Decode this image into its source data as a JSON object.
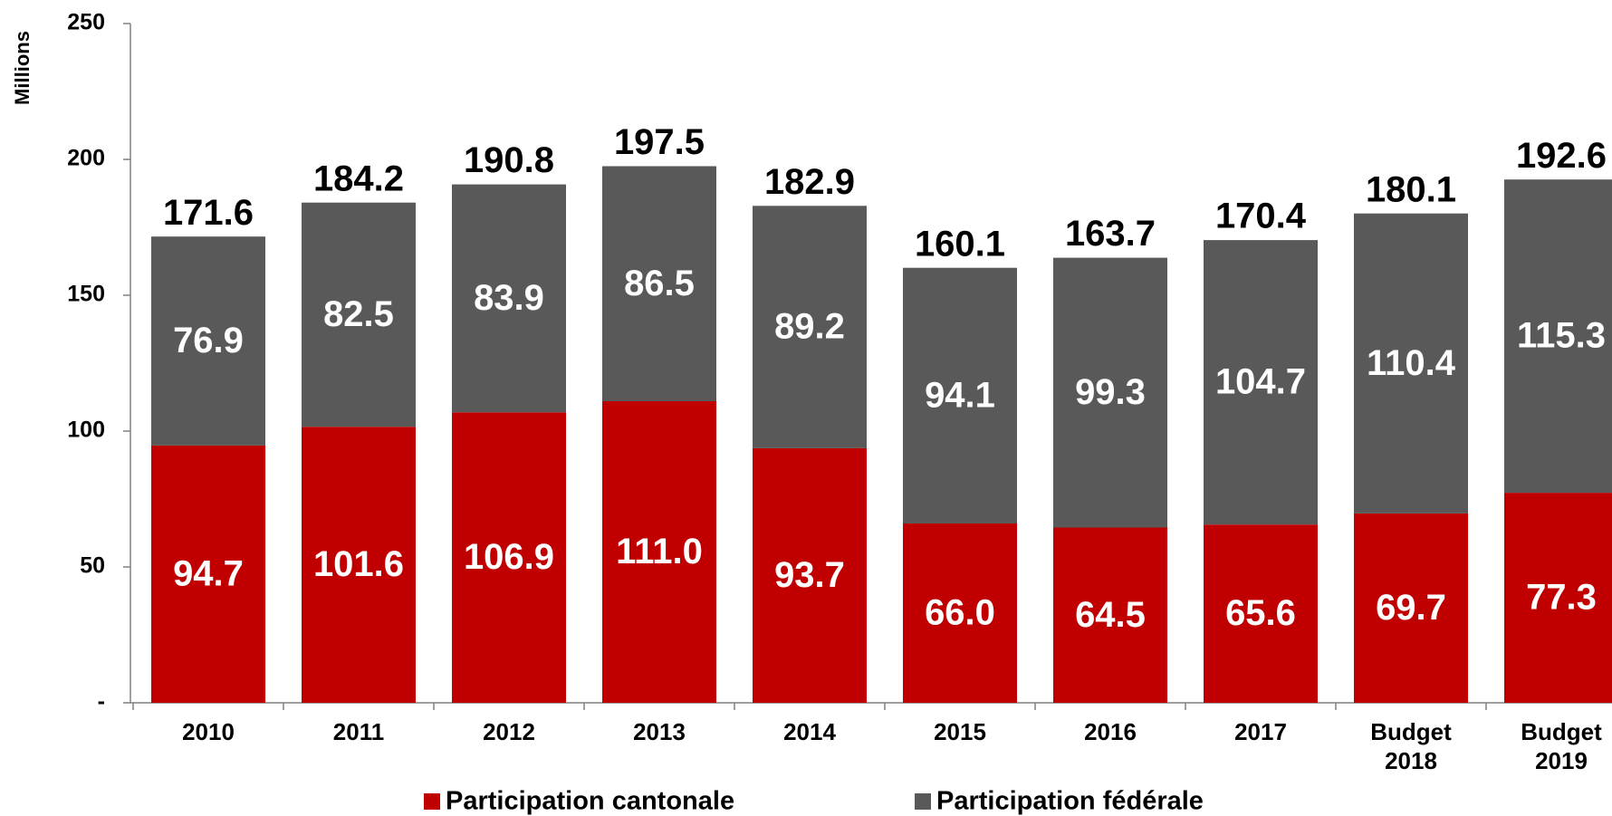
{
  "chart_data": {
    "type": "stacked_bar",
    "y_label": "Millions",
    "categories": [
      "2010",
      "2011",
      "2012",
      "2013",
      "2014",
      "2015",
      "2016",
      "2017",
      "Budget 2018",
      "Budget 2019"
    ],
    "series": [
      {
        "name": "Participation cantonale",
        "color": "#c00000",
        "values": [
          94.7,
          101.6,
          106.9,
          111.0,
          93.7,
          66.0,
          64.5,
          65.6,
          69.7,
          77.3
        ],
        "value_labels": [
          "94.7",
          "101.6",
          "106.9",
          "111.0",
          "93.7",
          "66.0",
          "64.5",
          "65.6",
          "69.7",
          "77.3"
        ]
      },
      {
        "name": "Participation fédérale",
        "color": "#595959",
        "values": [
          76.9,
          82.5,
          83.9,
          86.5,
          89.2,
          94.1,
          99.3,
          104.7,
          110.4,
          115.3
        ],
        "value_labels": [
          "76.9",
          "82.5",
          "83.9",
          "86.5",
          "89.2",
          "94.1",
          "99.3",
          "104.7",
          "110.4",
          "115.3"
        ]
      }
    ],
    "totals": [
      171.6,
      184.2,
      190.8,
      197.5,
      182.9,
      160.1,
      163.7,
      170.4,
      180.1,
      192.6
    ],
    "ylim": [
      0,
      250
    ],
    "yticks": [
      {
        "value": 0,
        "label": "-"
      },
      50,
      100,
      150,
      200,
      250
    ],
    "legend": "bottom"
  }
}
